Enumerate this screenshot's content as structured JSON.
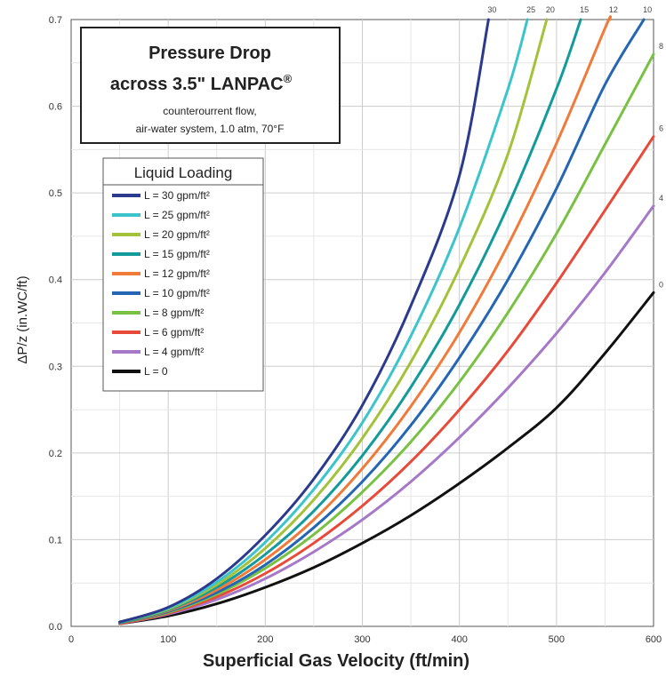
{
  "chart_data": {
    "type": "line",
    "title_line1": "Pressure Drop",
    "title_line2": "across 3.5\" LANPAC",
    "title_sup": "®",
    "subtitle_line1": "counterourrent flow,",
    "subtitle_line2": "air-water system, 1.0 atm, 70°F",
    "xlabel": "Superficial Gas Velocity (ft/min)",
    "ylabel": "ΔP/z (in.WC/ft)",
    "xlim": [
      0,
      600
    ],
    "ylim": [
      0,
      0.7
    ],
    "x_ticks": [
      "0",
      "100",
      "200",
      "300",
      "400",
      "500",
      "600"
    ],
    "y_ticks": [
      "0.0",
      "0.1",
      "0.2",
      "0.3",
      "0.4",
      "0.5",
      "0.6",
      "0.7"
    ],
    "grid": true,
    "legend_title": "Liquid Loading",
    "legend_position": "upper-left",
    "series": [
      {
        "name": "L = 30 gpm/ft²",
        "end_label": "30",
        "color": "#2b3a8c",
        "points": [
          [
            50,
            0.005
          ],
          [
            100,
            0.022
          ],
          [
            150,
            0.055
          ],
          [
            200,
            0.105
          ],
          [
            250,
            0.17
          ],
          [
            300,
            0.255
          ],
          [
            350,
            0.37
          ],
          [
            400,
            0.52
          ],
          [
            430,
            0.7
          ]
        ]
      },
      {
        "name": "L = 25 gpm/ft²",
        "end_label": "25",
        "color": "#3cc4cc",
        "points": [
          [
            50,
            0.005
          ],
          [
            100,
            0.021
          ],
          [
            150,
            0.051
          ],
          [
            200,
            0.097
          ],
          [
            250,
            0.158
          ],
          [
            300,
            0.235
          ],
          [
            350,
            0.335
          ],
          [
            400,
            0.46
          ],
          [
            450,
            0.62
          ],
          [
            470,
            0.7
          ]
        ]
      },
      {
        "name": "L = 20 gpm/ft²",
        "end_label": "20",
        "color": "#a3c23a",
        "points": [
          [
            50,
            0.005
          ],
          [
            100,
            0.02
          ],
          [
            150,
            0.048
          ],
          [
            200,
            0.09
          ],
          [
            250,
            0.146
          ],
          [
            300,
            0.217
          ],
          [
            350,
            0.305
          ],
          [
            400,
            0.413
          ],
          [
            450,
            0.545
          ],
          [
            490,
            0.7
          ]
        ]
      },
      {
        "name": "L = 15 gpm/ft²",
        "end_label": "15",
        "color": "#139a9a",
        "points": [
          [
            50,
            0.004
          ],
          [
            100,
            0.019
          ],
          [
            150,
            0.045
          ],
          [
            200,
            0.083
          ],
          [
            250,
            0.133
          ],
          [
            300,
            0.197
          ],
          [
            350,
            0.276
          ],
          [
            400,
            0.371
          ],
          [
            450,
            0.485
          ],
          [
            500,
            0.62
          ],
          [
            525,
            0.7
          ]
        ]
      },
      {
        "name": "L = 12 gpm/ft²",
        "end_label": "12",
        "color": "#f07a3a",
        "points": [
          [
            50,
            0.004
          ],
          [
            100,
            0.018
          ],
          [
            150,
            0.042
          ],
          [
            200,
            0.077
          ],
          [
            250,
            0.123
          ],
          [
            300,
            0.182
          ],
          [
            350,
            0.254
          ],
          [
            400,
            0.339
          ],
          [
            450,
            0.44
          ],
          [
            500,
            0.557
          ],
          [
            550,
            0.69
          ],
          [
            555,
            0.7
          ]
        ]
      },
      {
        "name": "L = 10 gpm/ft²",
        "end_label": "10",
        "color": "#2466b4",
        "points": [
          [
            50,
            0.004
          ],
          [
            100,
            0.017
          ],
          [
            150,
            0.039
          ],
          [
            200,
            0.071
          ],
          [
            250,
            0.114
          ],
          [
            300,
            0.167
          ],
          [
            350,
            0.232
          ],
          [
            400,
            0.31
          ],
          [
            450,
            0.4
          ],
          [
            500,
            0.505
          ],
          [
            550,
            0.625
          ],
          [
            590,
            0.7
          ]
        ]
      },
      {
        "name": "L =   8 gpm/ft²",
        "end_label": "8",
        "color": "#78c142",
        "points": [
          [
            50,
            0.004
          ],
          [
            100,
            0.016
          ],
          [
            150,
            0.037
          ],
          [
            200,
            0.067
          ],
          [
            250,
            0.106
          ],
          [
            300,
            0.155
          ],
          [
            350,
            0.213
          ],
          [
            400,
            0.282
          ],
          [
            450,
            0.362
          ],
          [
            500,
            0.453
          ],
          [
            550,
            0.556
          ],
          [
            600,
            0.66
          ]
        ]
      },
      {
        "name": "L =   6 gpm/ft²",
        "end_label": "6",
        "color": "#e84a3a",
        "points": [
          [
            50,
            0.003
          ],
          [
            100,
            0.015
          ],
          [
            150,
            0.034
          ],
          [
            200,
            0.061
          ],
          [
            250,
            0.096
          ],
          [
            300,
            0.139
          ],
          [
            350,
            0.19
          ],
          [
            400,
            0.25
          ],
          [
            450,
            0.318
          ],
          [
            500,
            0.396
          ],
          [
            550,
            0.48
          ],
          [
            600,
            0.565
          ]
        ]
      },
      {
        "name": "L =   4 gpm/ft²",
        "end_label": "4",
        "color": "#a578c8",
        "points": [
          [
            50,
            0.003
          ],
          [
            100,
            0.014
          ],
          [
            150,
            0.031
          ],
          [
            200,
            0.055
          ],
          [
            250,
            0.086
          ],
          [
            300,
            0.123
          ],
          [
            350,
            0.167
          ],
          [
            400,
            0.218
          ],
          [
            450,
            0.275
          ],
          [
            500,
            0.338
          ],
          [
            550,
            0.408
          ],
          [
            600,
            0.485
          ]
        ]
      },
      {
        "name": "L =   0",
        "end_label": "0",
        "color": "#111111",
        "points": [
          [
            50,
            0.003
          ],
          [
            100,
            0.012
          ],
          [
            150,
            0.026
          ],
          [
            200,
            0.045
          ],
          [
            250,
            0.068
          ],
          [
            300,
            0.096
          ],
          [
            350,
            0.128
          ],
          [
            400,
            0.165
          ],
          [
            450,
            0.206
          ],
          [
            500,
            0.252
          ],
          [
            550,
            0.315
          ],
          [
            600,
            0.385
          ]
        ]
      }
    ]
  }
}
